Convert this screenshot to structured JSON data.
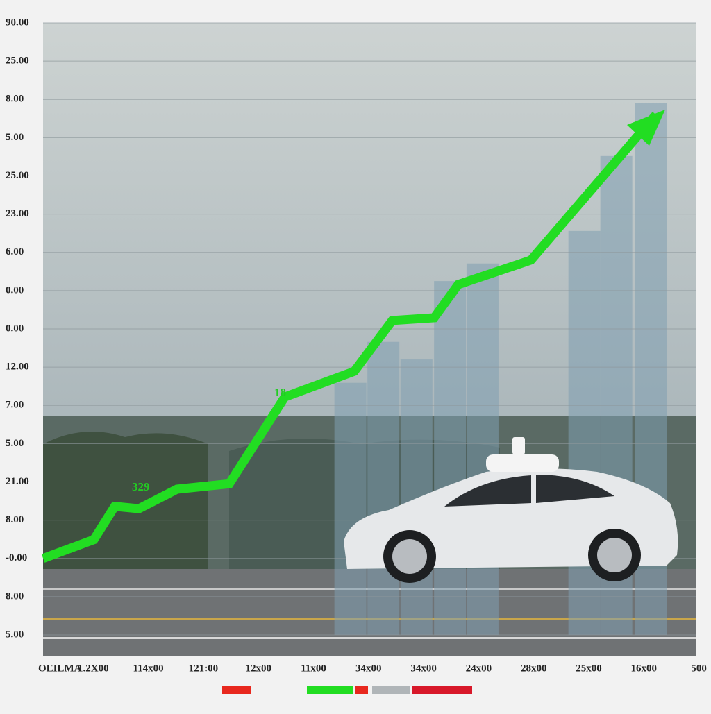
{
  "chart_data": {
    "type": "line",
    "annotations": [
      "329",
      "18"
    ],
    "xlim": [
      0,
      12.5
    ],
    "xticks": [
      {
        "value": 0,
        "label": "OEILMA"
      },
      {
        "value": 1,
        "label": "1.2X00"
      },
      {
        "value": 2,
        "label": "114x00"
      },
      {
        "value": 3,
        "label": "121:00"
      },
      {
        "value": 4,
        "label": "12x00"
      },
      {
        "value": 5,
        "label": "11x00"
      },
      {
        "value": 6,
        "label": "34x00"
      },
      {
        "value": 7,
        "label": "34x00"
      },
      {
        "value": 8,
        "label": "24x00"
      },
      {
        "value": 9,
        "label": "28x00"
      },
      {
        "value": 10,
        "label": "25x00"
      },
      {
        "value": 11,
        "label": "16x00"
      },
      {
        "value": 12,
        "label": "500"
      }
    ],
    "ylim": [
      0,
      16
    ],
    "yticks": [
      {
        "value": 0,
        "label": "5.00"
      },
      {
        "value": 1,
        "label": "8.00"
      },
      {
        "value": 2,
        "label": "-0.00"
      },
      {
        "value": 3,
        "label": "8.00"
      },
      {
        "value": 4,
        "label": "21.00"
      },
      {
        "value": 5,
        "label": "5.00"
      },
      {
        "value": 6,
        "label": "7.00"
      },
      {
        "value": 7,
        "label": "12.00"
      },
      {
        "value": 8,
        "label": "0.00"
      },
      {
        "value": 9,
        "label": "0.00"
      },
      {
        "value": 10,
        "label": "6.00"
      },
      {
        "value": 11,
        "label": "23.00"
      },
      {
        "value": 12,
        "label": "25.00"
      },
      {
        "value": 13,
        "label": "5.00"
      },
      {
        "value": 14,
        "label": "8.00"
      },
      {
        "value": 15,
        "label": "25.00"
      },
      {
        "value": 16,
        "label": "90.00"
      }
    ],
    "grid": true,
    "bars": {
      "color": "#7f9fb0",
      "x": [
        5.67,
        6.27,
        6.87,
        7.48,
        8.07,
        9.92,
        10.5,
        11.13
      ],
      "values": [
        6.59,
        7.66,
        7.2,
        9.25,
        9.71,
        10.56,
        12.52,
        13.91
      ]
    },
    "series": [
      {
        "color": "#22dd22",
        "x": [
          0.09,
          1.01,
          1.39,
          1.83,
          2.52,
          3.47,
          4.48,
          5.74,
          6.43,
          7.19,
          7.63,
          8.95,
          11.22
        ],
        "values": [
          2.0,
          2.49,
          3.36,
          3.3,
          3.81,
          3.95,
          6.22,
          6.89,
          8.22,
          8.29,
          9.16,
          9.8,
          13.6
        ]
      }
    ]
  }
}
